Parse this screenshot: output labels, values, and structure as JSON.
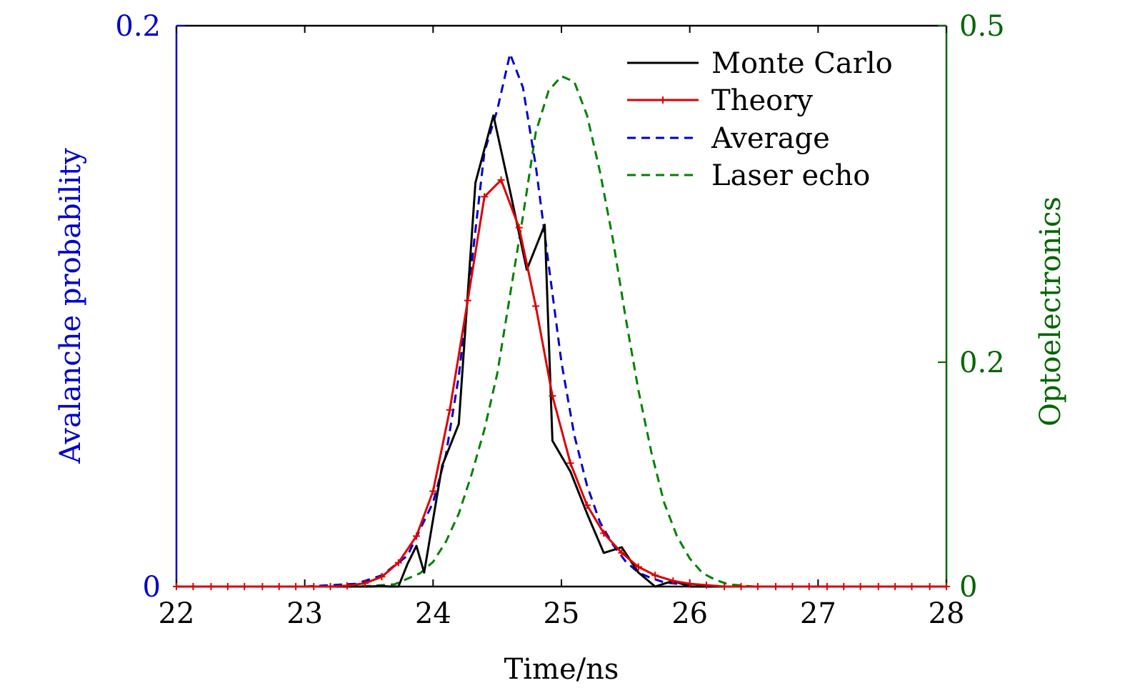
{
  "chart_data": {
    "type": "line",
    "title": "",
    "xlabel": "Time/ns",
    "ylabel_left": "Avalanche probability",
    "ylabel_right": "Optoelectronics",
    "xlim": [
      22,
      28
    ],
    "ylim_left": [
      0,
      0.2
    ],
    "ylim_right": [
      0,
      0.5
    ],
    "x_ticks": [
      "22",
      "23",
      "24",
      "25",
      "26",
      "27",
      "28"
    ],
    "y_left_ticks": [
      "0",
      "0.2"
    ],
    "y_right_ticks": [
      "0",
      "0.2",
      "0.5"
    ],
    "colors": {
      "left_axis": "#0000cc",
      "right_axis": "#006600",
      "monte_carlo": "#000000",
      "theory": "#dd0000",
      "average": "#0000cc",
      "laser_echo": "#008000"
    },
    "series": [
      {
        "name": "Monte Carlo",
        "axis": "left",
        "style": "solid",
        "x": [
          22.0,
          22.5,
          23.0,
          23.3,
          23.5,
          23.6,
          23.67,
          23.73,
          23.8,
          23.87,
          23.93,
          24.07,
          24.2,
          24.33,
          24.47,
          24.6,
          24.73,
          24.87,
          24.93,
          25.07,
          25.2,
          25.33,
          25.47,
          25.6,
          25.73,
          25.87,
          26.0,
          26.5,
          27.0,
          27.5,
          28.0
        ],
        "y": [
          0,
          0,
          0,
          0,
          0,
          0.0002,
          0,
          0,
          0.008,
          0.0145,
          0.005,
          0.043,
          0.058,
          0.144,
          0.168,
          0.141,
          0.113,
          0.129,
          0.052,
          0.041,
          0.026,
          0.012,
          0.014,
          0.005,
          0,
          0.002,
          0,
          0,
          0,
          0,
          0
        ]
      },
      {
        "name": "Theory",
        "axis": "left",
        "style": "solid-markers",
        "x": [
          22.0,
          22.13,
          22.27,
          22.4,
          22.53,
          22.67,
          22.8,
          22.93,
          23.07,
          23.2,
          23.33,
          23.47,
          23.6,
          23.73,
          23.87,
          24.0,
          24.13,
          24.27,
          24.4,
          24.53,
          24.67,
          24.8,
          24.93,
          25.07,
          25.2,
          25.33,
          25.47,
          25.6,
          25.73,
          25.87,
          26.0,
          26.13,
          26.27,
          26.4,
          26.53,
          26.67,
          26.8,
          26.93,
          27.07,
          27.2,
          27.33,
          27.47,
          27.6,
          27.73,
          27.87,
          28.0
        ],
        "y": [
          0,
          0,
          0,
          0,
          0,
          0,
          0,
          0,
          0,
          0,
          0.0003,
          0.0012,
          0.0035,
          0.0085,
          0.018,
          0.034,
          0.063,
          0.102,
          0.139,
          0.145,
          0.128,
          0.1,
          0.068,
          0.044,
          0.029,
          0.019,
          0.012,
          0.007,
          0.004,
          0.002,
          0.001,
          0.0005,
          0,
          0,
          0,
          0,
          0,
          0,
          0,
          0,
          0,
          0,
          0,
          0,
          0,
          0
        ]
      },
      {
        "name": "Average",
        "axis": "left",
        "style": "dashed",
        "x": [
          22.0,
          23.0,
          23.4,
          23.6,
          23.8,
          24.0,
          24.1,
          24.2,
          24.3,
          24.4,
          24.5,
          24.6,
          24.7,
          24.8,
          24.9,
          25.0,
          25.1,
          25.2,
          25.3,
          25.4,
          25.5,
          25.6,
          25.7,
          25.8,
          26.0,
          26.2,
          26.5,
          27.0,
          28.0
        ],
        "y": [
          0,
          0,
          0.001,
          0.004,
          0.011,
          0.03,
          0.047,
          0.075,
          0.115,
          0.155,
          0.17,
          0.19,
          0.178,
          0.15,
          0.115,
          0.08,
          0.054,
          0.036,
          0.023,
          0.015,
          0.009,
          0.005,
          0.003,
          0.0015,
          0.0005,
          0,
          0,
          0,
          0
        ]
      },
      {
        "name": "Laser echo",
        "axis": "right",
        "style": "dashed",
        "x": [
          22.0,
          23.0,
          23.5,
          23.7,
          23.9,
          24.0,
          24.1,
          24.2,
          24.3,
          24.4,
          24.5,
          24.6,
          24.7,
          24.8,
          24.9,
          25.0,
          25.1,
          25.2,
          25.3,
          25.4,
          25.5,
          25.6,
          25.7,
          25.8,
          25.9,
          26.0,
          26.1,
          26.2,
          26.3,
          26.5,
          27.0,
          28.0
        ],
        "y": [
          0,
          0,
          0.0005,
          0.002,
          0.012,
          0.022,
          0.04,
          0.065,
          0.1,
          0.14,
          0.19,
          0.26,
          0.33,
          0.405,
          0.442,
          0.455,
          0.45,
          0.42,
          0.37,
          0.31,
          0.24,
          0.175,
          0.12,
          0.075,
          0.045,
          0.025,
          0.012,
          0.006,
          0.002,
          0,
          0,
          0
        ]
      }
    ],
    "legend": {
      "position": "top-right",
      "entries": [
        "Monte Carlo",
        "Theory",
        "Average",
        "Laser echo"
      ]
    }
  }
}
